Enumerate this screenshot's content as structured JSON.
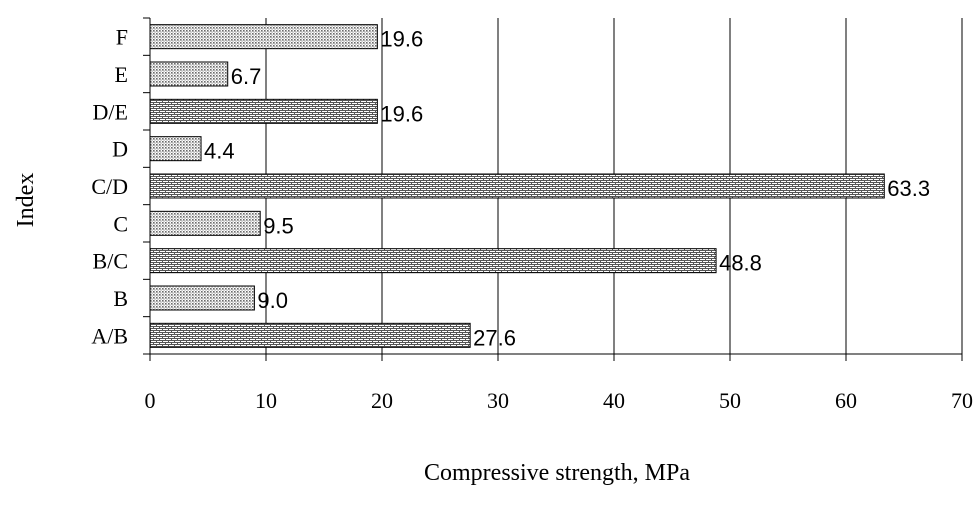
{
  "chart_data": {
    "type": "bar",
    "orientation": "horizontal",
    "categories": [
      "A/B",
      "B",
      "B/C",
      "C",
      "C/D",
      "D",
      "D/E",
      "E",
      "F"
    ],
    "values": [
      27.6,
      9.0,
      48.8,
      9.5,
      63.3,
      4.4,
      19.6,
      6.7,
      19.6
    ],
    "value_labels": [
      "27.6",
      "9.0",
      "48.8",
      "9.5",
      "63.3",
      "4.4",
      "19.6",
      "6.7",
      "19.6"
    ],
    "xlabel": "Compressive strength, MPa",
    "ylabel": "Index",
    "xlim": [
      0,
      70
    ],
    "xticks": [
      "0",
      "10",
      "20",
      "30",
      "40",
      "50",
      "60",
      "70"
    ],
    "grid": "vertical",
    "legend": "none",
    "patterns": [
      "brick",
      "dots",
      "brick",
      "dots",
      "brick",
      "dots",
      "brick",
      "dots",
      "dots"
    ]
  }
}
